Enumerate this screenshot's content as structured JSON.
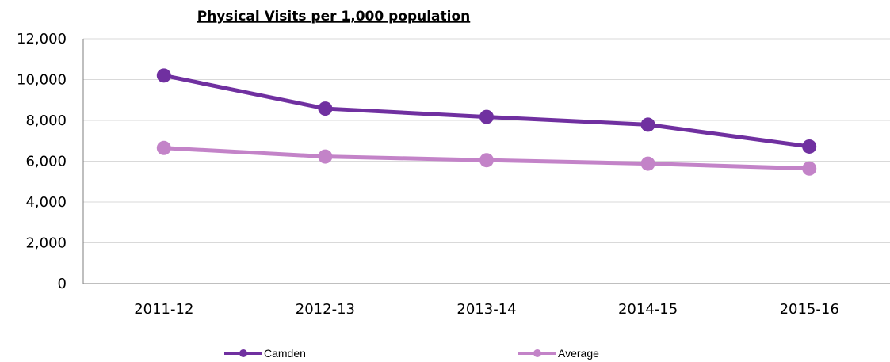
{
  "chart_data": {
    "type": "line",
    "title": "Physical Visits per 1,000 population",
    "xlabel": "",
    "ylabel": "",
    "categories": [
      "2011-12",
      "2012-13",
      "2013-14",
      "2014-15",
      "2015-16"
    ],
    "ylim": [
      0,
      12000
    ],
    "yticks": [
      "0",
      "2,000",
      "4,000",
      "6,000",
      "8,000",
      "10,000",
      "12,000"
    ],
    "ytick_values": [
      0,
      2000,
      4000,
      6000,
      8000,
      10000,
      12000
    ],
    "grid": true,
    "legend_position": "bottom",
    "series": [
      {
        "name": "Camden",
        "color": "#7030a0",
        "values": [
          10200,
          8580,
          8170,
          7790,
          6720
        ]
      },
      {
        "name": "Average",
        "color": "#c383c8",
        "values": [
          6650,
          6230,
          6050,
          5880,
          5640
        ]
      }
    ]
  }
}
